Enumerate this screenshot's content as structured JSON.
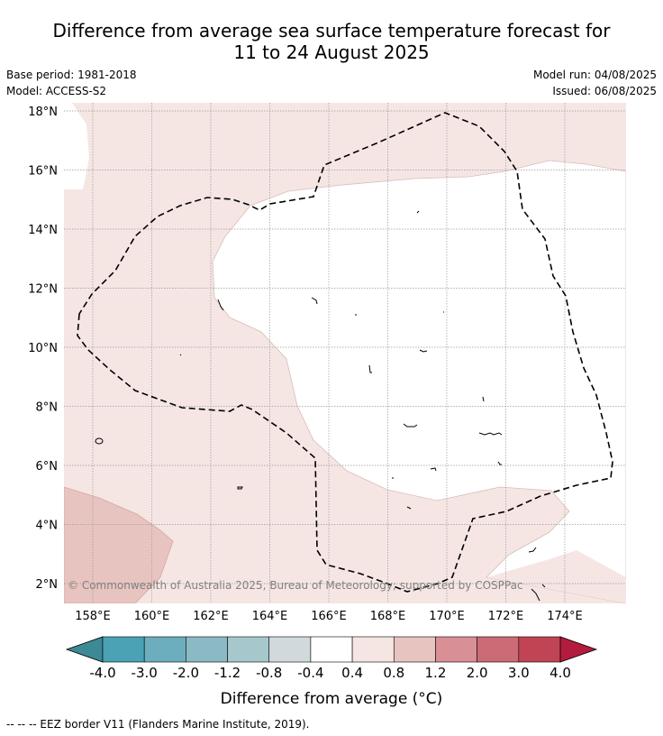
{
  "title_line1": "Difference from average sea surface temperature forecast for",
  "title_line2": "11 to 24 August 2025",
  "meta": {
    "base_period": "Base period: 1981-2018",
    "model": "Model: ACCESS-S2",
    "model_run": "Model run: 04/08/2025",
    "issued": "Issued: 06/08/2025"
  },
  "map": {
    "lat_labels": [
      "18°N",
      "16°N",
      "14°N",
      "12°N",
      "10°N",
      "8°N",
      "6°N",
      "4°N",
      "2°N"
    ],
    "lon_labels": [
      "158°E",
      "160°E",
      "162°E",
      "164°E",
      "166°E",
      "168°E",
      "170°E",
      "172°E",
      "174°E"
    ],
    "lat_values": [
      18,
      16,
      14,
      12,
      10,
      8,
      6,
      4,
      2
    ],
    "lon_values": [
      158,
      160,
      162,
      164,
      166,
      168,
      170,
      172,
      174
    ],
    "copyright": "© Commonwealth of Australia 2025, Bureau of Meteorology; supported by COSPPac"
  },
  "colorbar": {
    "label": "Difference from average (°C)",
    "ticks": [
      "-4.0",
      "-3.0",
      "-2.0",
      "-1.2",
      "-0.8",
      "-0.4",
      "0.4",
      "0.8",
      "1.2",
      "2.0",
      "3.0",
      "4.0"
    ],
    "colors": [
      "#4aa2b4",
      "#6caebd",
      "#8bb9c4",
      "#a6c7cc",
      "#d2d9dc",
      "#ffffff",
      "#f5e6e4",
      "#e8c4c0",
      "#d98f96",
      "#cc6a75",
      "#c04454"
    ],
    "extend_low_color": "#3d8a96",
    "extend_high_color": "#b31c3c"
  },
  "footnote": "--  --  -- EEZ border V11 (Flanders Marine Institute, 2019)."
}
